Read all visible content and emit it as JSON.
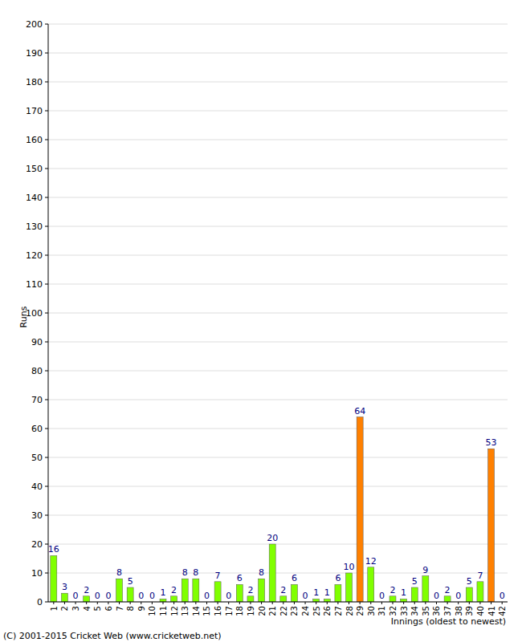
{
  "chart_data": {
    "type": "bar",
    "y_label": "Runs",
    "x_label": "Innings (oldest to newest)",
    "annotations": [
      "(C) 2001-2015 Cricket Web (www.cricketweb.net)"
    ],
    "categories": [
      "1",
      "2",
      "3",
      "4",
      "5",
      "6",
      "7",
      "8",
      "9",
      "10",
      "11",
      "12",
      "13",
      "14",
      "15",
      "16",
      "17",
      "18",
      "19",
      "20",
      "21",
      "22",
      "23",
      "24",
      "25",
      "26",
      "27",
      "28",
      "29",
      "30",
      "31",
      "32",
      "33",
      "34",
      "35",
      "36",
      "37",
      "38",
      "39",
      "40",
      "41",
      "42"
    ],
    "values": [
      16,
      3,
      0,
      2,
      0,
      0,
      8,
      5,
      0,
      0,
      1,
      2,
      8,
      8,
      0,
      7,
      0,
      6,
      2,
      8,
      20,
      2,
      6,
      0,
      1,
      1,
      6,
      10,
      64,
      12,
      0,
      2,
      1,
      5,
      9,
      0,
      2,
      0,
      5,
      7,
      53,
      0
    ],
    "colors": [
      "#80ff00",
      "#80ff00",
      "#80ff00",
      "#80ff00",
      "#80ff00",
      "#80ff00",
      "#80ff00",
      "#80ff00",
      "#80ff00",
      "#80ff00",
      "#80ff00",
      "#80ff00",
      "#80ff00",
      "#80ff00",
      "#80ff00",
      "#80ff00",
      "#80ff00",
      "#80ff00",
      "#80ff00",
      "#80ff00",
      "#80ff00",
      "#80ff00",
      "#80ff00",
      "#80ff00",
      "#80ff00",
      "#80ff00",
      "#80ff00",
      "#80ff00",
      "#ff8000",
      "#80ff00",
      "#80ff00",
      "#80ff00",
      "#80ff00",
      "#80ff00",
      "#80ff00",
      "#80ff00",
      "#80ff00",
      "#80ff00",
      "#80ff00",
      "#80ff00",
      "#ff8000",
      "#80ff00"
    ],
    "ylim": [
      0,
      200
    ],
    "yticks": [
      0,
      10,
      20,
      30,
      40,
      50,
      60,
      70,
      80,
      90,
      100,
      110,
      120,
      130,
      140,
      150,
      160,
      170,
      180,
      190,
      200
    ],
    "grid": true,
    "data_labels": true
  }
}
